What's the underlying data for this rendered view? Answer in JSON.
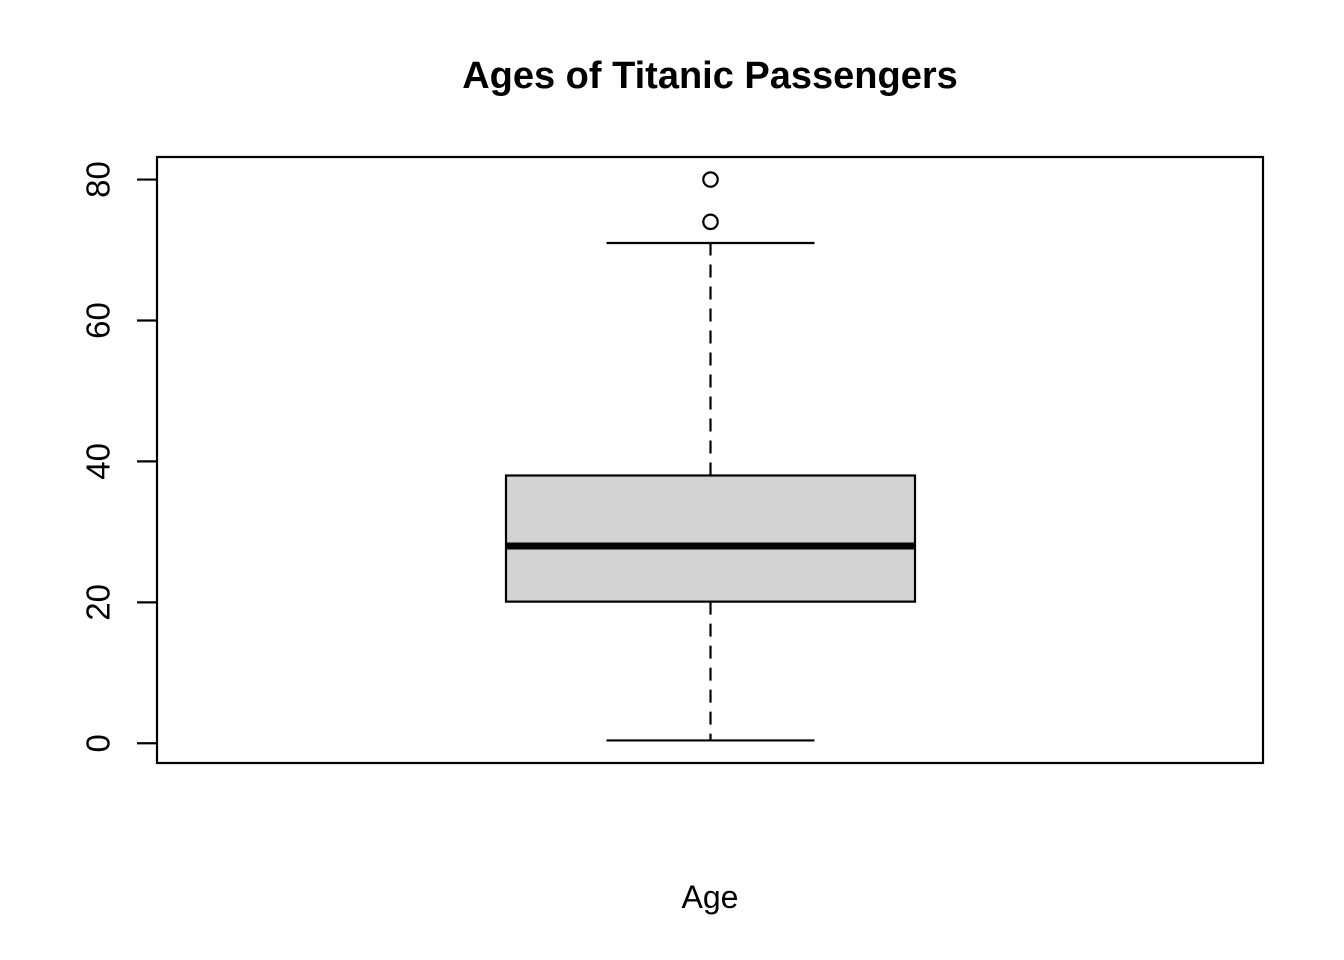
{
  "chart_data": {
    "type": "boxplot",
    "orientation": "vertical",
    "title": "Ages of Titanic Passengers",
    "xlabel": "Age",
    "ylabel": "",
    "yticks": [
      0,
      20,
      40,
      60,
      80
    ],
    "ylim": [
      -2.8,
      83.2
    ],
    "grid": false,
    "legend": false,
    "series": [
      {
        "name": "Age",
        "lower_whisker": 0.4,
        "q1": 20.1,
        "median": 28,
        "q3": 38,
        "upper_whisker": 71,
        "outliers": [
          74,
          80
        ]
      }
    ],
    "style": {
      "line_color": "#000000",
      "box_fill": "#d3d3d3",
      "background": "#ffffff"
    }
  }
}
